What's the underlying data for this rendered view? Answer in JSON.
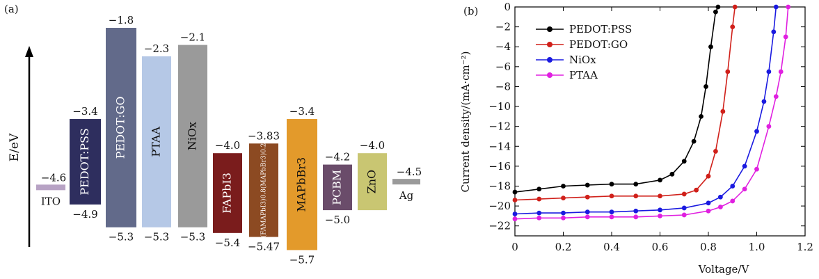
{
  "panel_a": {
    "label": "(a)",
    "ylabel": "E/eV",
    "layers": [
      {
        "name": "ITO",
        "top": -4.6,
        "top_label": "−4.6",
        "color": "#b7a2c4"
      },
      {
        "name": "PEDOT:PSS",
        "top": -3.4,
        "bottom": -4.9,
        "top_label": "−3.4",
        "bottom_label": "−4.9",
        "color": "#2e2e5e"
      },
      {
        "name": "PEDOT:GO",
        "top": -1.8,
        "bottom": -5.3,
        "top_label": "−1.8",
        "bottom_label": "−5.3",
        "color": "#626a8a"
      },
      {
        "name": "PTAA",
        "top": -2.3,
        "bottom": -5.3,
        "top_label": "−2.3",
        "bottom_label": "−5.3",
        "color": "#b5c8e6"
      },
      {
        "name": "NiOx",
        "top": -2.1,
        "bottom": -5.3,
        "top_label": "−2.1",
        "bottom_label": "−5.3",
        "color": "#9a9a9a"
      },
      {
        "name": "FAPbI3",
        "top": -4.0,
        "bottom": -5.4,
        "top_label": "−4.0",
        "bottom_label": "−5.4",
        "color": "#7a1c1c"
      },
      {
        "name": "(FAMAPbI3)0.8(MAPbBr3)0.2",
        "top": -3.83,
        "bottom": -5.47,
        "top_label": "−3.83",
        "bottom_label": "−5.47",
        "color": "#8c4a22"
      },
      {
        "name": "MAPbBr3",
        "top": -3.4,
        "bottom": -5.7,
        "top_label": "−3.4",
        "bottom_label": "−5.7",
        "color": "#e39a2b"
      },
      {
        "name": "PCBM",
        "top": -4.2,
        "bottom": -5.0,
        "top_label": "−4.2",
        "bottom_label": "−5.0",
        "color": "#6a4c6a"
      },
      {
        "name": "ZnO",
        "top": -4.0,
        "bottom": -5.0,
        "top_label": "−4.0",
        "bottom_label": "",
        "color": "#c9c672"
      },
      {
        "name": "Ag",
        "top": -4.5,
        "top_label": "−4.5",
        "color": "#9a9a9a"
      }
    ]
  },
  "chart_data": {
    "type": "line",
    "panel_label": "(b)",
    "xlabel": "Voltage/V",
    "ylabel": "Current density/(mA·cm⁻²)",
    "xlim": [
      0,
      1.2
    ],
    "ylim": [
      -23,
      0
    ],
    "xticks": [
      "0",
      "0.2",
      "0.4",
      "0.6",
      "0.8",
      "1.0",
      "1.2"
    ],
    "yticks": [
      "0",
      "−2",
      "−4",
      "−6",
      "−8",
      "−10",
      "−12",
      "−14",
      "−16",
      "−18",
      "−20",
      "−22"
    ],
    "legend_position": "top-left",
    "series": [
      {
        "name": "PEDOT:PSS",
        "color": "#000000",
        "x": [
          0,
          0.1,
          0.2,
          0.3,
          0.4,
          0.5,
          0.6,
          0.65,
          0.7,
          0.74,
          0.77,
          0.79,
          0.81,
          0.83,
          0.84
        ],
        "y": [
          -18.6,
          -18.3,
          -18.0,
          -17.9,
          -17.8,
          -17.8,
          -17.4,
          -16.8,
          -15.5,
          -13.5,
          -11.0,
          -8.0,
          -4.0,
          -0.5,
          0.0
        ]
      },
      {
        "name": "PEDOT:GO",
        "color": "#d0201a",
        "x": [
          0,
          0.1,
          0.2,
          0.3,
          0.4,
          0.5,
          0.6,
          0.7,
          0.75,
          0.8,
          0.83,
          0.86,
          0.88,
          0.9,
          0.91
        ],
        "y": [
          -19.4,
          -19.3,
          -19.2,
          -19.1,
          -19.0,
          -19.0,
          -19.0,
          -18.8,
          -18.4,
          -17.0,
          -14.5,
          -10.5,
          -6.5,
          -2.0,
          0.0
        ]
      },
      {
        "name": "NiOx",
        "color": "#1a1ae0",
        "x": [
          0,
          0.1,
          0.2,
          0.3,
          0.4,
          0.5,
          0.6,
          0.7,
          0.8,
          0.85,
          0.9,
          0.95,
          1.0,
          1.03,
          1.05,
          1.07,
          1.08
        ],
        "y": [
          -20.8,
          -20.7,
          -20.7,
          -20.6,
          -20.6,
          -20.5,
          -20.4,
          -20.2,
          -19.7,
          -19.1,
          -18.0,
          -16.0,
          -12.5,
          -9.5,
          -6.5,
          -2.5,
          0.0
        ]
      },
      {
        "name": "PTAA",
        "color": "#e020e0",
        "x": [
          0,
          0.1,
          0.2,
          0.3,
          0.4,
          0.5,
          0.6,
          0.7,
          0.8,
          0.85,
          0.9,
          0.95,
          1.0,
          1.05,
          1.08,
          1.1,
          1.12,
          1.13
        ],
        "y": [
          -21.3,
          -21.2,
          -21.2,
          -21.1,
          -21.1,
          -21.1,
          -21.0,
          -20.9,
          -20.5,
          -20.1,
          -19.5,
          -18.3,
          -16.3,
          -12.0,
          -9.0,
          -6.5,
          -3.0,
          0.0
        ]
      }
    ]
  }
}
